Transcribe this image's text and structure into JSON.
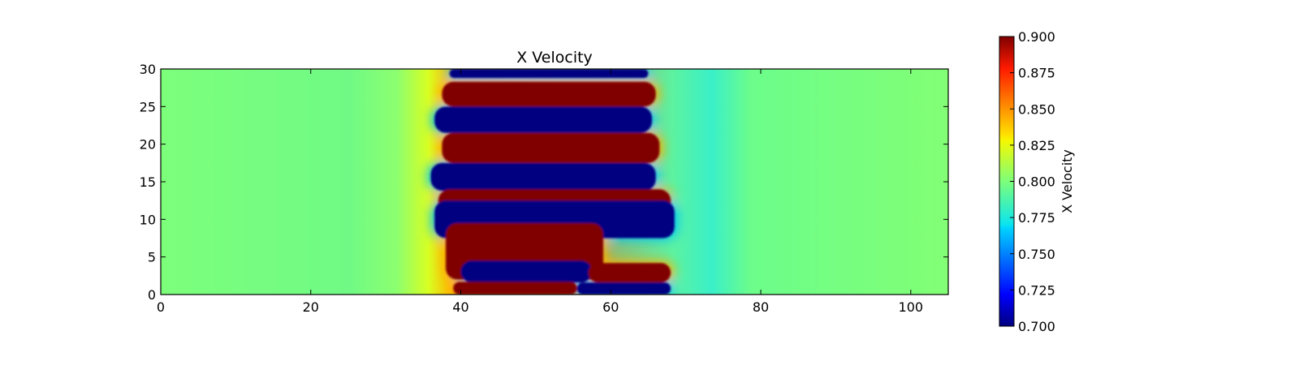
{
  "chart_data": {
    "type": "heatmap",
    "title": "X Velocity",
    "xlabel": "",
    "ylabel": "",
    "xlim": [
      0,
      105
    ],
    "ylim": [
      0,
      30
    ],
    "x_ticks": [
      "0",
      "20",
      "40",
      "60",
      "80",
      "100"
    ],
    "y_ticks": [
      "0",
      "5",
      "10",
      "15",
      "20",
      "25",
      "30"
    ],
    "colorbar": {
      "label": "X Velocity",
      "range": [
        0.7,
        0.9
      ],
      "ticks": [
        "0.700",
        "0.725",
        "0.750",
        "0.775",
        "0.800",
        "0.825",
        "0.850",
        "0.875",
        "0.900"
      ],
      "colormap": "jet"
    },
    "background_value": 0.8,
    "features": [
      {
        "kind": "low",
        "value": 0.7,
        "x": [
          38.5,
          65
        ],
        "y": [
          28.8,
          30
        ]
      },
      {
        "kind": "high",
        "value": 0.9,
        "x": [
          37.5,
          66
        ],
        "y": [
          25,
          28.3
        ]
      },
      {
        "kind": "low",
        "value": 0.7,
        "x": [
          36.5,
          65.5
        ],
        "y": [
          21.5,
          25
        ]
      },
      {
        "kind": "high",
        "value": 0.9,
        "x": [
          37.5,
          66.5
        ],
        "y": [
          17.5,
          21.5
        ]
      },
      {
        "kind": "low",
        "value": 0.7,
        "x": [
          36,
          66
        ],
        "y": [
          13.8,
          17.5
        ]
      },
      {
        "kind": "high",
        "value": 0.9,
        "x": [
          37,
          68
        ],
        "y": [
          10.3,
          14
        ]
      },
      {
        "kind": "low",
        "value": 0.7,
        "x": [
          36.5,
          68.5
        ],
        "y": [
          7.5,
          12.5
        ]
      },
      {
        "kind": "high",
        "value": 0.9,
        "x": [
          38,
          59
        ],
        "y": [
          2,
          9.5
        ]
      },
      {
        "kind": "low",
        "value": 0.7,
        "x": [
          40,
          57.5
        ],
        "y": [
          1.6,
          4.5
        ]
      },
      {
        "kind": "high",
        "value": 0.9,
        "x": [
          57,
          68
        ],
        "y": [
          1.6,
          4.2
        ]
      },
      {
        "kind": "high",
        "value": 0.9,
        "x": [
          39,
          55.5
        ],
        "y": [
          0,
          1.7
        ]
      },
      {
        "kind": "low",
        "value": 0.7,
        "x": [
          55.5,
          68
        ],
        "y": [
          0,
          1.6
        ]
      }
    ]
  }
}
